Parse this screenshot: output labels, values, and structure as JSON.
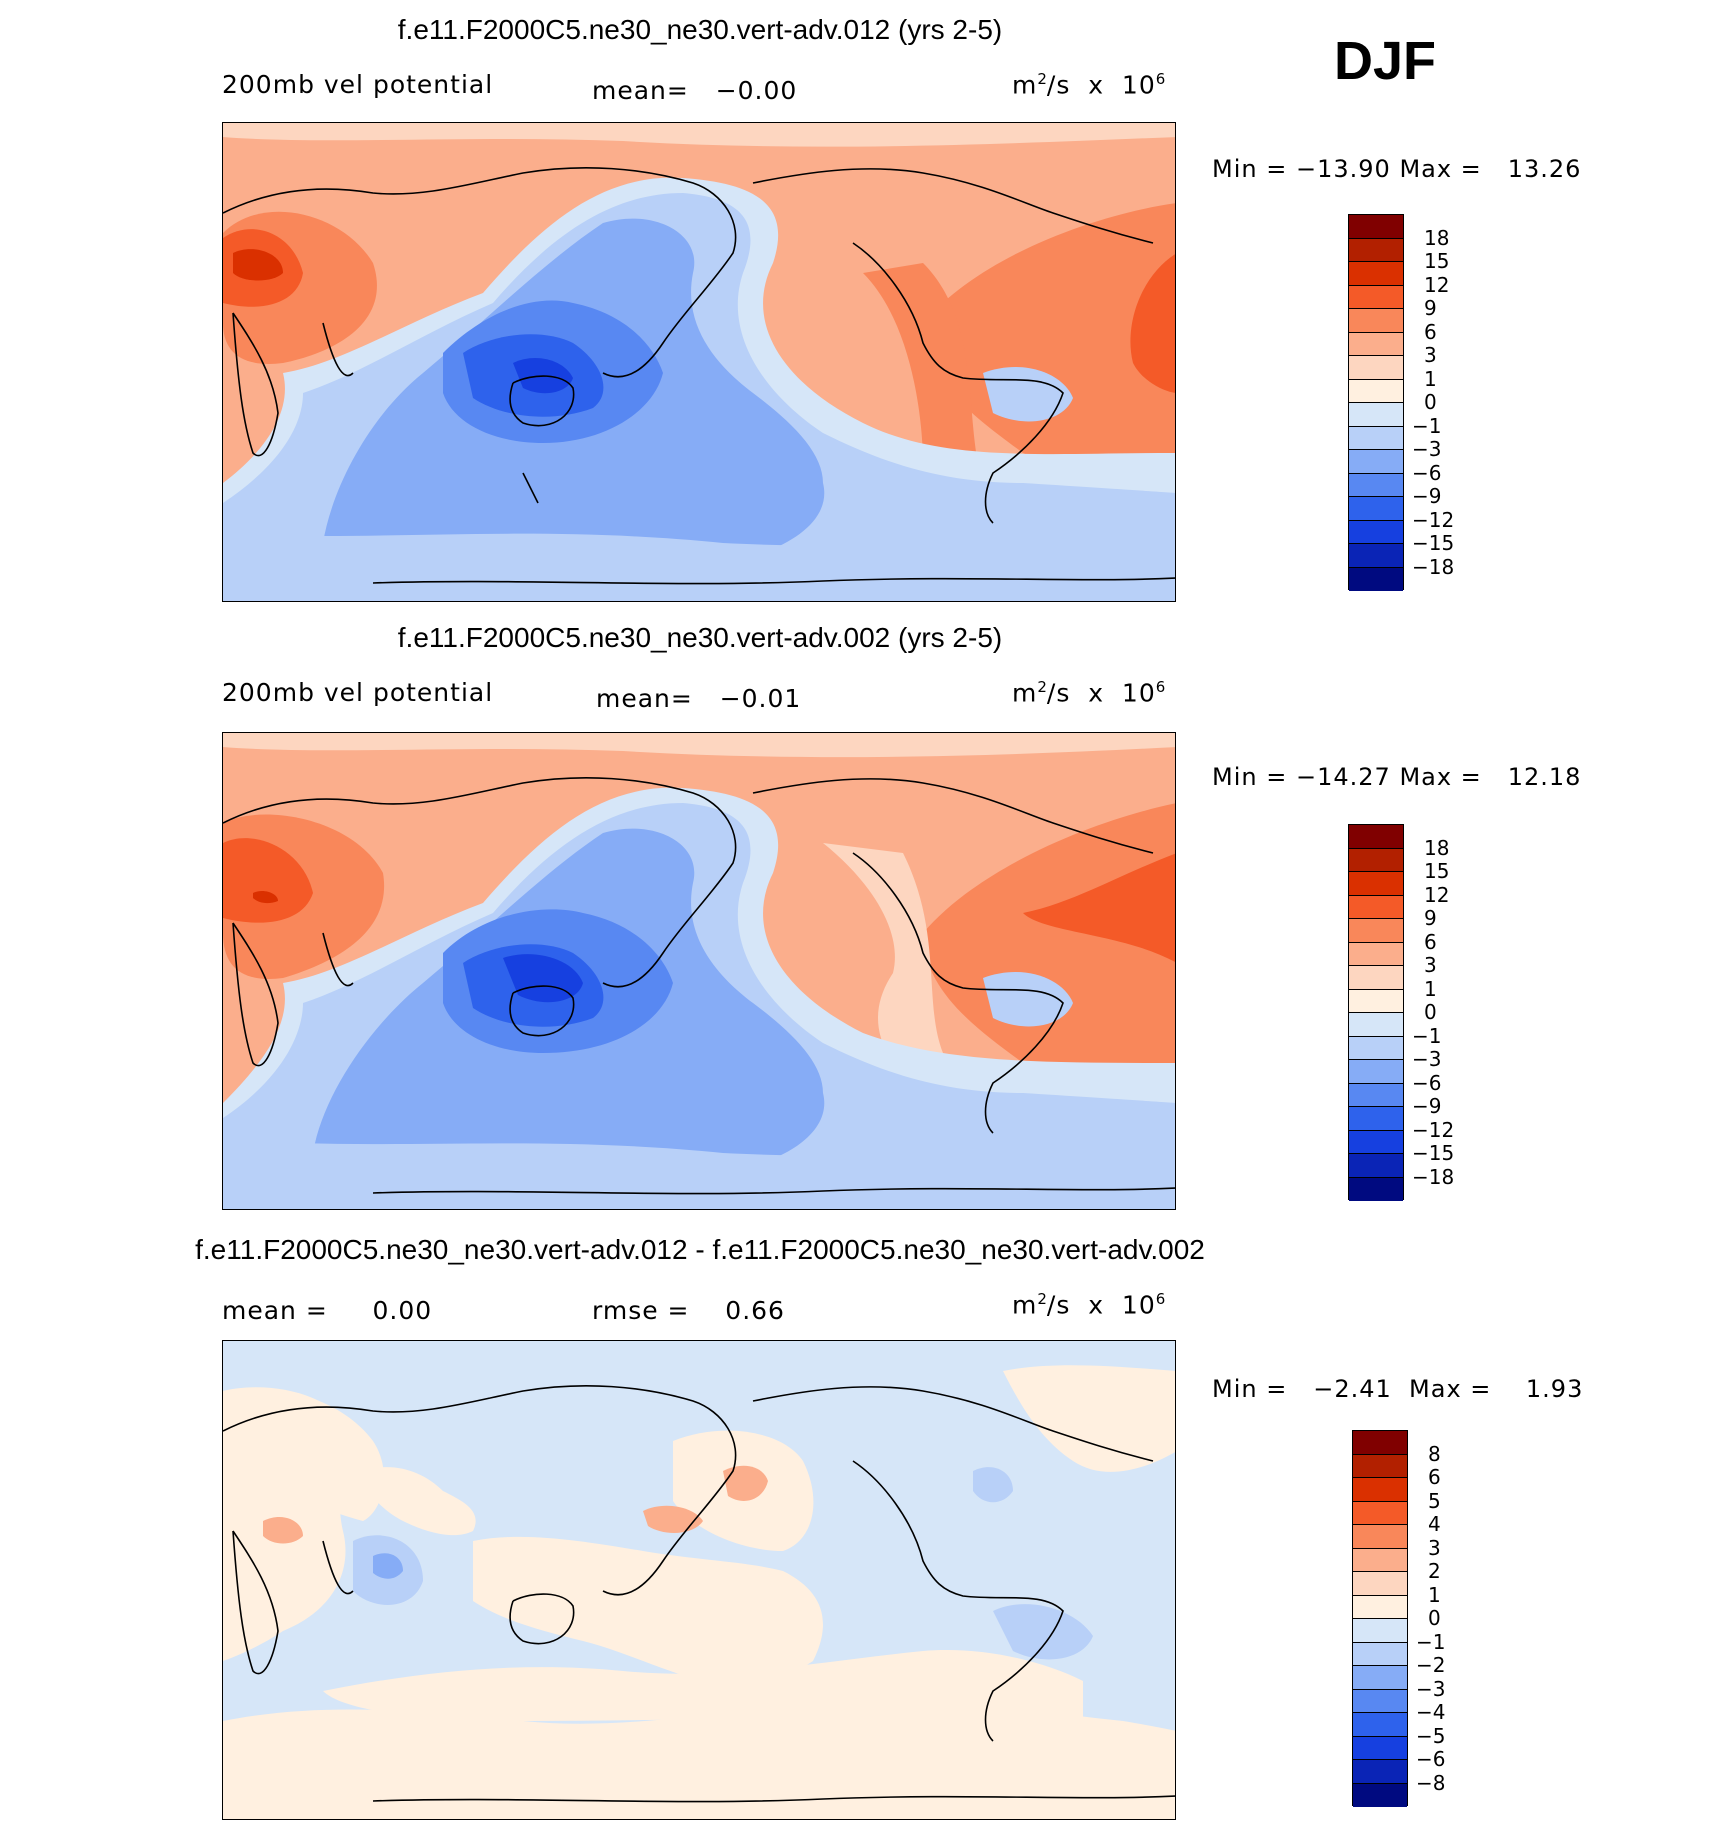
{
  "season": "DJF",
  "panels": [
    {
      "title": "f.e11.F2000C5.ne30_ne30.vert-adv.012 (yrs 2-5)",
      "left_label": "200mb  vel  potential",
      "mean_label": "mean=",
      "mean_value": "−0.00",
      "units": "m",
      "units_sup": "2",
      "units_tail": "/s  x  10",
      "units_exp": "6",
      "min_label": "Min  =",
      "min_value": "−13.90",
      "max_label": "Max  =",
      "max_value": "13.26",
      "colorbar": {
        "labels": [
          "18",
          "15",
          "12",
          "9",
          "6",
          "3",
          "1",
          "0",
          "−1",
          "−3",
          "−6",
          "−9",
          "−12",
          "−15",
          "−18"
        ],
        "colors": [
          "#800000",
          "#b22000",
          "#da3000",
          "#f45a28",
          "#f9875a",
          "#fbae8c",
          "#fdd6c0",
          "#fff0e0",
          "#d6e6f8",
          "#b8d0f8",
          "#86acf6",
          "#5888f2",
          "#2e62ec",
          "#1640e0",
          "#0a24b6",
          "#000a80"
        ]
      }
    },
    {
      "title": "f.e11.F2000C5.ne30_ne30.vert-adv.002 (yrs 2-5)",
      "left_label": "200mb  vel  potential",
      "mean_label": "mean=",
      "mean_value": "−0.01",
      "units": "m",
      "units_sup": "2",
      "units_tail": "/s  x  10",
      "units_exp": "6",
      "min_label": "Min  =",
      "min_value": "−14.27",
      "max_label": "Max  =",
      "max_value": "12.18",
      "colorbar": {
        "labels": [
          "18",
          "15",
          "12",
          "9",
          "6",
          "3",
          "1",
          "0",
          "−1",
          "−3",
          "−6",
          "−9",
          "−12",
          "−15",
          "−18"
        ],
        "colors": [
          "#800000",
          "#b22000",
          "#da3000",
          "#f45a28",
          "#f9875a",
          "#fbae8c",
          "#fdd6c0",
          "#fff0e0",
          "#d6e6f8",
          "#b8d0f8",
          "#86acf6",
          "#5888f2",
          "#2e62ec",
          "#1640e0",
          "#0a24b6",
          "#000a80"
        ]
      }
    },
    {
      "title": "f.e11.F2000C5.ne30_ne30.vert-adv.012 - f.e11.F2000C5.ne30_ne30.vert-adv.002",
      "left_label": "mean  =",
      "left_value": "0.00",
      "mean_label": "rmse  =",
      "mean_value": "0.66",
      "units": "m",
      "units_sup": "2",
      "units_tail": "/s  x  10",
      "units_exp": "6",
      "min_label": "Min  =",
      "min_value": "−2.41",
      "max_label": "Max  =",
      "max_value": "1.93",
      "colorbar": {
        "labels": [
          "8",
          "6",
          "5",
          "4",
          "3",
          "2",
          "1",
          "0",
          "−1",
          "−2",
          "−3",
          "−4",
          "−5",
          "−6",
          "−8"
        ],
        "colors": [
          "#800000",
          "#b22000",
          "#da3000",
          "#f45a28",
          "#f9875a",
          "#fbae8c",
          "#fdd6c0",
          "#fff0e0",
          "#d6e6f8",
          "#b8d0f8",
          "#86acf6",
          "#5888f2",
          "#2e62ec",
          "#1640e0",
          "#0a24b6",
          "#000a80"
        ]
      }
    }
  ]
}
